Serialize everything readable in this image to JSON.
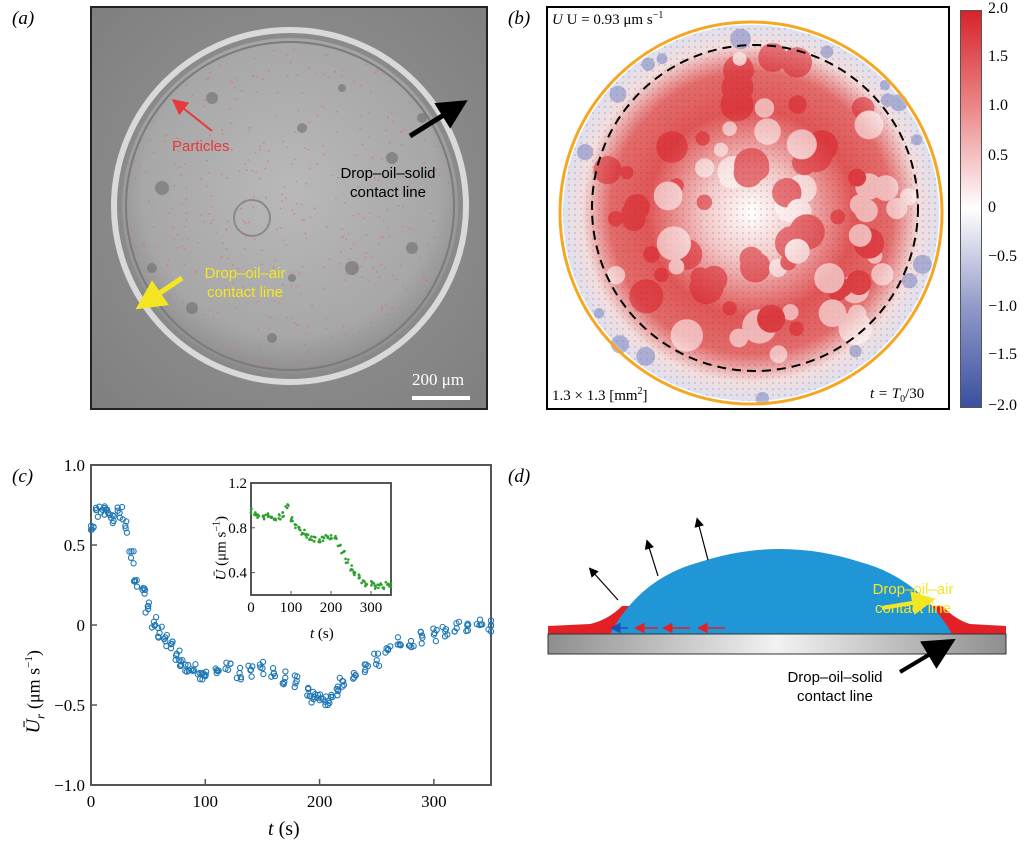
{
  "panels": {
    "a": {
      "label": "(a)",
      "particles_label": "Particles",
      "oil_solid_line1": "Drop–oil–solid",
      "oil_solid_line2": "contact line",
      "oil_air_line1": "Drop–oil–air",
      "oil_air_line2": "contact line",
      "scale_bar": "200 μm",
      "colors": {
        "particles": "#e8383d",
        "oil_air": "#f5e624",
        "oil_solid": "#000000"
      }
    },
    "b": {
      "label": "(b)",
      "velocity": "U = 0.93 μm s",
      "velocity_exp": "−1",
      "area": "1.3 × 1.3 [mm",
      "area_exp": "2",
      "area_close": "]",
      "time": "t = T",
      "time_sub": "0",
      "time_tail": "/30",
      "colorbar_ticks": [
        "2.0",
        "1.5",
        "1.0",
        "0.5",
        "0",
        "−0.5",
        "−1.0",
        "−1.5",
        "−2.0"
      ],
      "colors": {
        "max": "#d7232a",
        "min": "#3b4fa0",
        "contact_line": "#f5a623"
      }
    },
    "c": {
      "label": "(c)",
      "ylabel": "Ū",
      "ylabel_sub": "r",
      "ylabel_units": "(μm s",
      "ylabel_units_exp": "−1",
      "ylabel_units_close": ")",
      "xlabel": "t",
      "xlabel_units": "(s)",
      "inset_ylabel": "Ū",
      "inset_ylabel_units": "(μm s",
      "inset_ylabel_units_exp": "−1",
      "inset_ylabel_units_close": ")",
      "inset_xlabel": "t",
      "inset_xlabel_units": "(s)"
    },
    "d": {
      "label": "(d)",
      "oil_air_line1": "Drop–oil–air",
      "oil_air_line2": "contact line",
      "oil_solid_line1": "Drop–oil–solid",
      "oil_solid_line2": "contact line",
      "colors": {
        "drop": "#2196d6",
        "oil": "#e32026",
        "substrate": "#a8a8a8",
        "arrow_yellow": "#f5e624"
      }
    }
  },
  "chart_data": [
    {
      "type": "scatter",
      "panel": "c",
      "ylabel": "Ū_r (μm s−1)",
      "xlabel": "t (s)",
      "xlim": [
        0,
        350
      ],
      "ylim": [
        -1.0,
        1.0
      ],
      "xticks": [
        "0",
        "100",
        "200",
        "300"
      ],
      "yticks": [
        "1.0",
        "0.5",
        "0",
        "−0.5",
        "−1.0"
      ],
      "xtick_values": [
        0,
        100,
        200,
        300
      ],
      "ytick_values": [
        1.0,
        0.5,
        0,
        -0.5,
        -1.0
      ],
      "series": [
        {
          "color": "#1f77b4",
          "marker": "open-circle",
          "x": [
            0,
            5,
            10,
            15,
            20,
            25,
            30,
            35,
            40,
            45,
            50,
            55,
            60,
            65,
            70,
            75,
            80,
            85,
            90,
            95,
            100,
            110,
            120,
            130,
            140,
            150,
            160,
            170,
            180,
            190,
            195,
            200,
            205,
            210,
            215,
            220,
            230,
            240,
            250,
            260,
            270,
            280,
            290,
            300,
            310,
            320,
            330,
            340,
            350
          ],
          "y": [
            0.62,
            0.72,
            0.72,
            0.7,
            0.68,
            0.7,
            0.62,
            0.42,
            0.28,
            0.22,
            0.1,
            0.02,
            -0.05,
            -0.1,
            -0.12,
            -0.18,
            -0.22,
            -0.25,
            -0.28,
            -0.3,
            -0.32,
            -0.3,
            -0.28,
            -0.3,
            -0.28,
            -0.27,
            -0.3,
            -0.33,
            -0.35,
            -0.4,
            -0.45,
            -0.47,
            -0.48,
            -0.45,
            -0.4,
            -0.35,
            -0.3,
            -0.28,
            -0.22,
            -0.15,
            -0.12,
            -0.1,
            -0.08,
            -0.06,
            -0.04,
            -0.02,
            0.0,
            0.0,
            0.0
          ]
        }
      ]
    },
    {
      "type": "scatter",
      "panel": "c-inset",
      "ylabel": "Ū (μm s−1)",
      "xlabel": "t (s)",
      "xlim": [
        0,
        350
      ],
      "ylim": [
        0.2,
        1.2
      ],
      "xticks": [
        "0",
        "100",
        "200",
        "300"
      ],
      "yticks": [
        "1.2",
        "0.8",
        "0.4"
      ],
      "xtick_values": [
        0,
        100,
        200,
        300
      ],
      "ytick_values": [
        1.2,
        0.8,
        0.4
      ],
      "series": [
        {
          "color": "#2ca02c",
          "marker": "filled-dot",
          "x": [
            0,
            10,
            20,
            30,
            40,
            50,
            60,
            70,
            80,
            90,
            100,
            110,
            120,
            130,
            140,
            150,
            160,
            170,
            180,
            190,
            200,
            210,
            220,
            230,
            240,
            250,
            260,
            270,
            280,
            290,
            300,
            310,
            320,
            330,
            340,
            350
          ],
          "y": [
            0.95,
            0.92,
            0.9,
            0.9,
            0.92,
            0.88,
            0.88,
            0.9,
            0.92,
            1.0,
            0.88,
            0.82,
            0.8,
            0.76,
            0.72,
            0.7,
            0.7,
            0.68,
            0.7,
            0.72,
            0.72,
            0.72,
            0.66,
            0.58,
            0.5,
            0.44,
            0.4,
            0.36,
            0.32,
            0.3,
            0.3,
            0.28,
            0.28,
            0.28,
            0.3,
            0.3
          ]
        }
      ]
    }
  ]
}
